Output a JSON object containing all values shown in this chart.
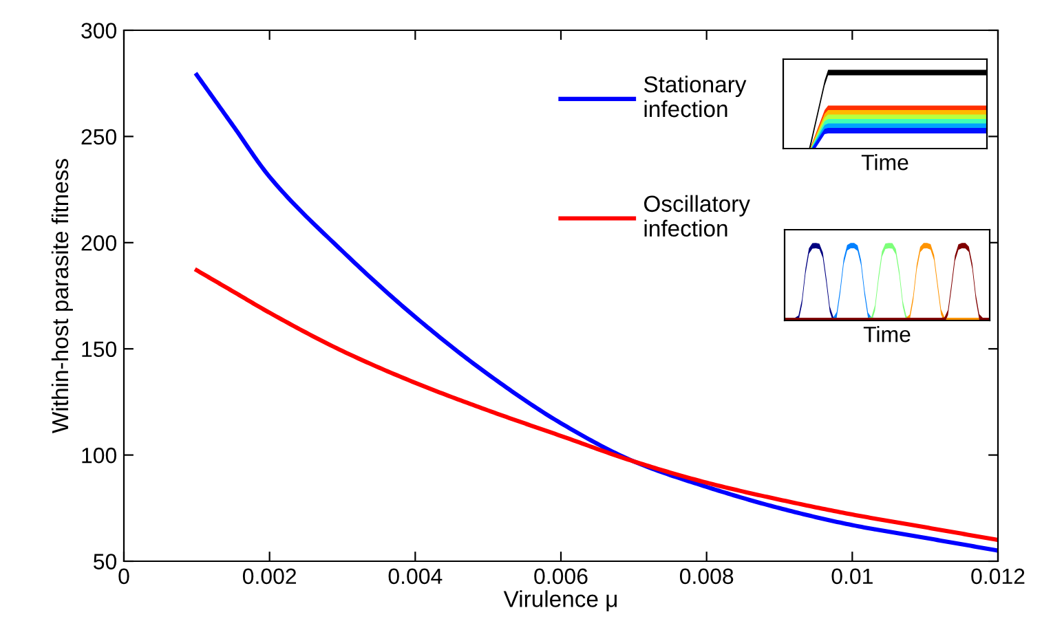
{
  "chart_data": {
    "type": "line",
    "xlabel": "Virulence μ",
    "ylabel": "Within-host parasite fitness",
    "xlim": [
      0,
      0.012
    ],
    "xticks": [
      0,
      0.002,
      0.004,
      0.006,
      0.008,
      0.01,
      0.012
    ],
    "ylim": [
      50,
      300
    ],
    "yticks": [
      50,
      100,
      150,
      200,
      250,
      300
    ],
    "grid": false,
    "legend": "top right",
    "line_style": "solid",
    "marker": "none",
    "annotations": [
      "Time",
      "Time"
    ],
    "series": [
      {
        "name": "Stationary\ninfection",
        "color": "#0000ff",
        "x": [
          0.001,
          0.0015,
          0.002,
          0.003,
          0.004,
          0.005,
          0.006,
          0.007,
          0.008,
          0.009,
          0.01,
          0.011,
          0.012
        ],
        "values": [
          279,
          255,
          231,
          196,
          165,
          138,
          115,
          97,
          85,
          75,
          67,
          61,
          55
        ]
      },
      {
        "name": "Oscillatory\ninfection",
        "color": "#ff0000",
        "x": [
          0.001,
          0.0015,
          0.002,
          0.003,
          0.004,
          0.005,
          0.006,
          0.007,
          0.008,
          0.009,
          0.01,
          0.011,
          0.012
        ],
        "values": [
          187,
          177,
          167,
          149,
          134,
          121,
          109,
          97,
          87,
          79,
          72,
          66,
          60
        ]
      }
    ]
  }
}
